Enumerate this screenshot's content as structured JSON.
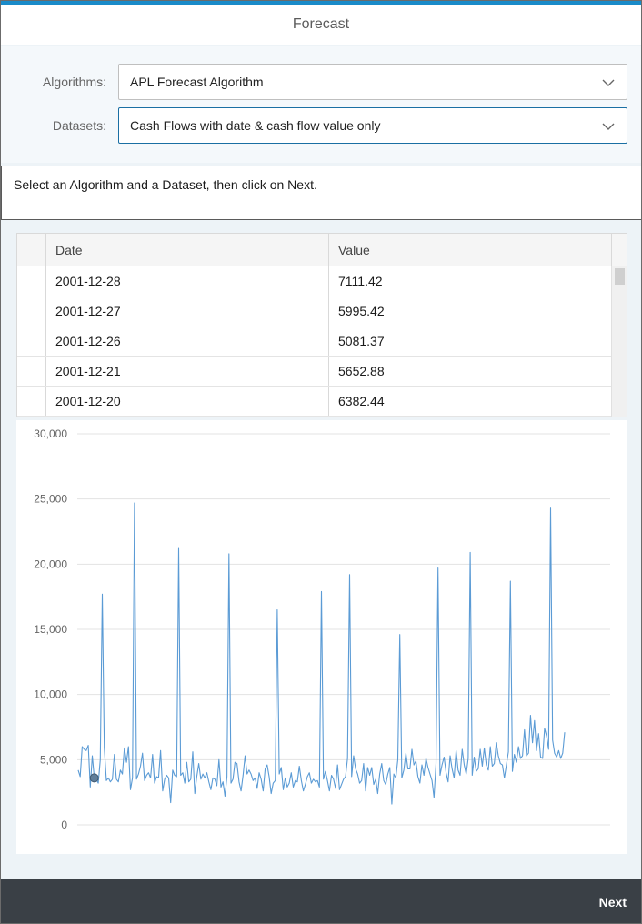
{
  "header": {
    "title": "Forecast"
  },
  "form": {
    "algorithm_label": "Algorithms:",
    "algorithm_value": "APL Forecast Algorithm",
    "dataset_label": "Datasets:",
    "dataset_value": "Cash Flows with date & cash flow value only"
  },
  "message": "Select an Algorithm and a Dataset, then click on Next.",
  "table": {
    "columns": [
      "Date",
      "Value"
    ],
    "rows": [
      {
        "date": "2001-12-28",
        "value": "7111.42"
      },
      {
        "date": "2001-12-27",
        "value": "5995.42"
      },
      {
        "date": "2001-12-26",
        "value": "5081.37"
      },
      {
        "date": "2001-12-21",
        "value": "5652.88"
      },
      {
        "date": "2001-12-20",
        "value": "6382.44"
      }
    ]
  },
  "chart_data": {
    "type": "line",
    "title": "",
    "xlabel": "",
    "ylabel": "",
    "ylim": [
      0,
      30000
    ],
    "yticks": [
      "0",
      "5,000",
      "10,000",
      "15,000",
      "20,000",
      "25,000",
      "30,000"
    ],
    "grid": true,
    "color": "#5b9bd5",
    "series": [
      {
        "values": [
          4200,
          3700,
          6000,
          5800,
          5700,
          6100,
          2900,
          5300,
          3600,
          3500,
          3200,
          5000,
          17700,
          5900,
          3400,
          3600,
          3300,
          3500,
          5400,
          3500,
          3300,
          4200,
          3900,
          5900,
          4800,
          6000,
          2700,
          3600,
          24700,
          3500,
          3900,
          4500,
          5500,
          3400,
          3800,
          4000,
          3600,
          5400,
          3200,
          3700,
          3600,
          5700,
          2600,
          3500,
          3800,
          3600,
          1700,
          4200,
          3800,
          3700,
          21200,
          3800,
          4000,
          3200,
          4800,
          3300,
          3500,
          5600,
          2400,
          3700,
          4700,
          3500,
          3900,
          3600,
          4000,
          3300,
          2700,
          3600,
          3500,
          3000,
          5000,
          2900,
          3300,
          2200,
          3700,
          20800,
          3200,
          3500,
          4800,
          4700,
          3300,
          2600,
          3800,
          5300,
          3900,
          4200,
          3900,
          3400,
          3600,
          2800,
          4000,
          3500,
          2600,
          4300,
          4600,
          3700,
          2400,
          3200,
          3400,
          16500,
          3900,
          4400,
          2700,
          3600,
          2900,
          3200,
          4000,
          2900,
          3400,
          3300,
          4500,
          3400,
          2600,
          3100,
          3700,
          4000,
          3200,
          3500,
          3300,
          3400,
          2900,
          17900,
          3500,
          4100,
          3400,
          2600,
          3800,
          3500,
          2800,
          4600,
          2700,
          3100,
          3500,
          3700,
          5100,
          19200,
          3700,
          5300,
          4300,
          3900,
          3200,
          3400,
          4700,
          2600,
          4400,
          3800,
          4400,
          3100,
          3500,
          2400,
          3900,
          4700,
          3400,
          3100,
          3900,
          4400,
          1600,
          3900,
          3600,
          5000,
          14600,
          3600,
          4200,
          5500,
          4300,
          4300,
          5800,
          4600,
          4900,
          3700,
          3200,
          4600,
          3800,
          5100,
          4400,
          3900,
          3400,
          2100,
          4700,
          19700,
          3800,
          4600,
          5200,
          4000,
          3300,
          5300,
          4300,
          3600,
          5700,
          4200,
          3800,
          5800,
          4600,
          3900,
          5100,
          20900,
          3800,
          5200,
          4100,
          4300,
          5800,
          4500,
          5900,
          4600,
          4200,
          6000,
          4500,
          4700,
          6300,
          5300,
          4700,
          4600,
          3600,
          4600,
          5600,
          18700,
          4100,
          5400,
          4800,
          6000,
          5100,
          5300,
          7300,
          5300,
          5500,
          8400,
          6300,
          8000,
          5700,
          7000,
          5200,
          5100,
          7400,
          6800,
          5800,
          24300,
          6500,
          5500,
          5200,
          5700,
          5100,
          5500,
          7100
        ]
      }
    ]
  }
}
